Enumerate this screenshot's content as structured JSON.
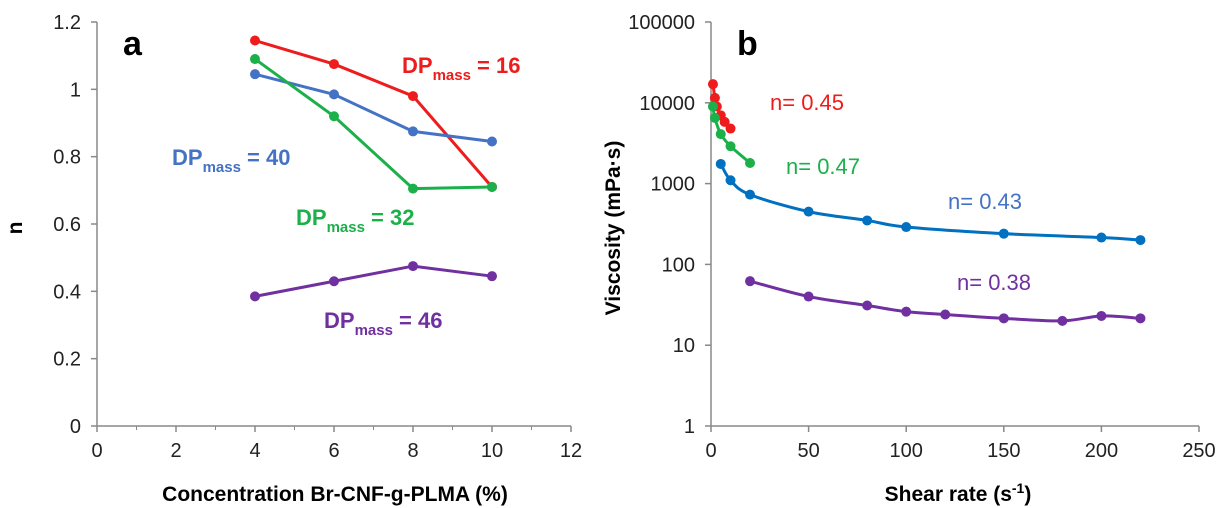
{
  "chart_data": [
    {
      "type": "line",
      "panel_label": "a",
      "xlabel": "Concentration Br-CNF-g-PLMA (%)",
      "ylabel": "n",
      "xlim": [
        0,
        12
      ],
      "ylim": [
        0,
        1.2
      ],
      "xticks": [
        "0",
        "2",
        "4",
        "6",
        "8",
        "10",
        "12"
      ],
      "yticks": [
        "0",
        "0.2",
        "0.4",
        "0.6",
        "0.8",
        "1",
        "1.2"
      ],
      "grid": false,
      "x": [
        4,
        6,
        8,
        10
      ],
      "series": [
        {
          "name": "DP",
          "name_sub": "mass",
          "name_suffix": " = 16",
          "color": "#ee1c1c",
          "values": [
            1.145,
            1.075,
            0.98,
            0.71
          ]
        },
        {
          "name": "DP",
          "name_sub": "mass",
          "name_suffix": " = 40",
          "color": "#4472c4",
          "values": [
            1.045,
            0.985,
            0.875,
            0.845
          ]
        },
        {
          "name": "DP",
          "name_sub": "mass",
          "name_suffix": " = 32",
          "color": "#1cb04a",
          "values": [
            1.09,
            0.92,
            0.705,
            0.71
          ]
        },
        {
          "name": "DP",
          "name_sub": "mass",
          "name_suffix": " = 46",
          "color": "#7030a0",
          "values": [
            0.385,
            0.43,
            0.475,
            0.445
          ]
        }
      ]
    },
    {
      "type": "line",
      "panel_label": "b",
      "xlabel": "Shear rate (s",
      "xlabel_sup": "-1",
      "xlabel_end": ")",
      "ylabel": "Viscosity (mPa·s)",
      "xlim": [
        0,
        250
      ],
      "ylim": [
        1,
        100000
      ],
      "yscale": "log",
      "xticks": [
        "0",
        "50",
        "100",
        "150",
        "200",
        "250"
      ],
      "yticks": [
        "1",
        "10",
        "100",
        "1000",
        "10000",
        "100000"
      ],
      "grid": false,
      "series": [
        {
          "name": "n= 0.45",
          "color": "#ee1c1c",
          "x": [
            1,
            2,
            3,
            5,
            7,
            10
          ],
          "values": [
            17000,
            11500,
            9000,
            7000,
            5800,
            4800
          ]
        },
        {
          "name": "n= 0.47",
          "color": "#1cb04a",
          "x": [
            1,
            2,
            5,
            10,
            20
          ],
          "values": [
            9000,
            6500,
            4100,
            2900,
            1800
          ]
        },
        {
          "name": "n= 0.43",
          "color": "#0070c0",
          "x": [
            5,
            10,
            20,
            50,
            80,
            100,
            150,
            200,
            220
          ],
          "values": [
            1750,
            1100,
            730,
            450,
            350,
            290,
            240,
            215,
            200
          ]
        },
        {
          "name": "n= 0.38",
          "color": "#7030a0",
          "x": [
            20,
            50,
            80,
            100,
            120,
            150,
            180,
            200,
            220
          ],
          "values": [
            62,
            40,
            31,
            26,
            24,
            21.5,
            20,
            23,
            21.5
          ]
        }
      ]
    }
  ]
}
